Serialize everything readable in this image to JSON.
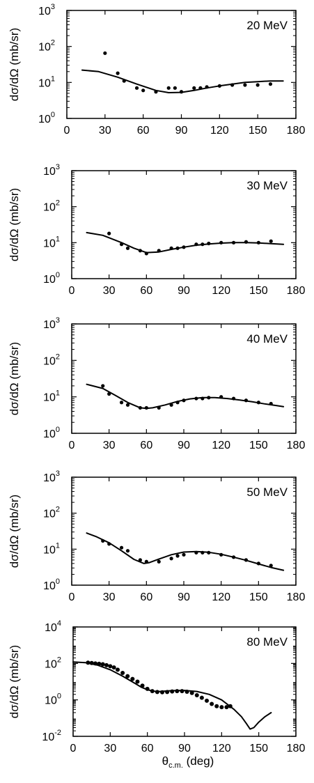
{
  "x_axis_label": "θc.m. (deg)",
  "x_axis_label_main": "θ",
  "x_axis_label_sub": "c.m.",
  "x_axis_label_unit": " (deg)",
  "chart_data": [
    {
      "type": "scatter",
      "energy_label": "20 MeV",
      "ylabel": "dσ/dΩ (mb/sr)",
      "xlim": [
        0,
        180
      ],
      "xticks": [
        0,
        30,
        60,
        90,
        120,
        150,
        180
      ],
      "yscale": "log",
      "ylim": [
        1,
        1000
      ],
      "ytick_exponents": [
        0,
        1,
        2,
        3
      ],
      "legend": "none",
      "grid": false,
      "series": [
        {
          "kind": "points",
          "x": [
            30,
            40,
            45,
            55,
            60,
            70,
            80,
            85,
            90,
            100,
            105,
            110,
            120,
            130,
            140,
            150,
            160
          ],
          "y": [
            65,
            18,
            11,
            7,
            6,
            5.5,
            7,
            7,
            5.5,
            7,
            7,
            7.5,
            8,
            8.5,
            8.5,
            8.5,
            9
          ]
        },
        {
          "kind": "curve",
          "x": [
            12,
            25,
            40,
            55,
            70,
            80,
            90,
            100,
            110,
            120,
            130,
            140,
            150,
            160,
            170
          ],
          "y": [
            22,
            20,
            14,
            9,
            6,
            5.2,
            5.3,
            6,
            7,
            8,
            9,
            10,
            10.5,
            11,
            11
          ]
        }
      ]
    },
    {
      "type": "scatter",
      "energy_label": "30 MeV",
      "ylabel": "dσ/dΩ (mb/sr)",
      "xlim": [
        0,
        180
      ],
      "xticks": [
        0,
        30,
        60,
        90,
        120,
        150,
        180
      ],
      "yscale": "log",
      "ylim": [
        1,
        1000
      ],
      "ytick_exponents": [
        0,
        1,
        2,
        3
      ],
      "legend": "none",
      "grid": false,
      "series": [
        {
          "kind": "points",
          "x": [
            30,
            40,
            45,
            55,
            60,
            70,
            80,
            85,
            90,
            100,
            105,
            110,
            120,
            130,
            140,
            150,
            160
          ],
          "y": [
            18,
            9,
            7,
            6,
            5,
            6,
            7,
            7,
            7.5,
            9,
            9,
            9.5,
            10,
            10,
            10.5,
            10,
            11
          ]
        },
        {
          "kind": "curve",
          "x": [
            12,
            25,
            40,
            50,
            60,
            70,
            80,
            90,
            100,
            110,
            120,
            130,
            140,
            150,
            160,
            170
          ],
          "y": [
            19,
            16,
            10,
            7,
            5.3,
            5.5,
            6.5,
            7.5,
            8.5,
            9.2,
            9.7,
            10,
            10,
            9.8,
            9.4,
            9
          ]
        }
      ]
    },
    {
      "type": "scatter",
      "energy_label": "40 MeV",
      "ylabel": "dσ/dΩ (mb/sr)",
      "xlim": [
        0,
        180
      ],
      "xticks": [
        0,
        30,
        60,
        90,
        120,
        150,
        180
      ],
      "yscale": "log",
      "ylim": [
        1,
        1000
      ],
      "ytick_exponents": [
        0,
        1,
        2,
        3
      ],
      "legend": "none",
      "grid": false,
      "series": [
        {
          "kind": "points",
          "x": [
            25,
            30,
            40,
            45,
            55,
            60,
            70,
            80,
            85,
            90,
            100,
            105,
            110,
            120,
            130,
            140,
            150,
            160
          ],
          "y": [
            20,
            12,
            7,
            6,
            5,
            5,
            5,
            6,
            7,
            8,
            9,
            9,
            9.5,
            10,
            9,
            8,
            7,
            6.5
          ]
        },
        {
          "kind": "curve",
          "x": [
            12,
            25,
            35,
            45,
            55,
            60,
            65,
            75,
            85,
            95,
            105,
            115,
            125,
            135,
            145,
            155,
            165,
            170
          ],
          "y": [
            22,
            17,
            11,
            7,
            5,
            4.8,
            5,
            6,
            7.5,
            8.8,
            9.5,
            9.5,
            9,
            8.2,
            7.3,
            6.4,
            5.7,
            5.4
          ]
        }
      ]
    },
    {
      "type": "scatter",
      "energy_label": "50 MeV",
      "ylabel": "dσ/dΩ (mb/sr)",
      "xlim": [
        0,
        180
      ],
      "xticks": [
        0,
        30,
        60,
        90,
        120,
        150,
        180
      ],
      "yscale": "log",
      "ylim": [
        1,
        1000
      ],
      "ytick_exponents": [
        0,
        1,
        2,
        3
      ],
      "legend": "none",
      "grid": false,
      "series": [
        {
          "kind": "points",
          "x": [
            25,
            30,
            40,
            45,
            55,
            60,
            70,
            80,
            85,
            90,
            100,
            105,
            110,
            120,
            130,
            140,
            150,
            160
          ],
          "y": [
            17,
            14,
            11,
            9,
            5,
            4.5,
            4.5,
            5.5,
            6.5,
            7,
            8,
            8,
            8,
            7,
            6,
            5,
            4,
            3.5
          ]
        },
        {
          "kind": "curve",
          "x": [
            12,
            20,
            30,
            40,
            50,
            58,
            62,
            70,
            80,
            90,
            100,
            110,
            120,
            130,
            140,
            150,
            160,
            170
          ],
          "y": [
            28,
            22,
            15,
            9,
            5.2,
            4,
            4.2,
            5.3,
            7,
            8.3,
            8.6,
            8.2,
            7.2,
            6,
            4.9,
            3.9,
            3.1,
            2.6
          ]
        }
      ]
    },
    {
      "type": "scatter",
      "energy_label": "80 MeV",
      "ylabel": "dσ/dΩ (mb/sr)",
      "xlim": [
        0,
        180
      ],
      "xticks": [
        0,
        30,
        60,
        90,
        120,
        150,
        180
      ],
      "yscale": "log",
      "ylim": [
        0.01,
        10000
      ],
      "ytick_exponents": [
        -2,
        0,
        2,
        4
      ],
      "legend": "none",
      "grid": false,
      "series": [
        {
          "kind": "points",
          "x": [
            12,
            15,
            18,
            21,
            24,
            27,
            30,
            33,
            36,
            40,
            44,
            48,
            52,
            56,
            60,
            64,
            68,
            72,
            76,
            80,
            84,
            88,
            92,
            96,
            100,
            104,
            108,
            112,
            116,
            120,
            124,
            127
          ],
          "y": [
            110,
            105,
            100,
            95,
            90,
            80,
            70,
            60,
            45,
            30,
            20,
            14,
            10,
            6,
            4,
            3,
            2.7,
            2.6,
            2.7,
            2.9,
            3,
            3,
            2.8,
            2.4,
            1.8,
            1.3,
            0.9,
            0.6,
            0.45,
            0.4,
            0.4,
            0.45
          ]
        },
        {
          "kind": "curve",
          "x": [
            0,
            10,
            20,
            30,
            40,
            50,
            55,
            60,
            65,
            70,
            80,
            90,
            100,
            110,
            120,
            130,
            136,
            140,
            143,
            146,
            150,
            155,
            160
          ],
          "y": [
            120,
            110,
            80,
            45,
            20,
            8,
            5,
            3.6,
            3,
            2.9,
            3.2,
            3.3,
            2.9,
            2,
            1,
            0.3,
            0.12,
            0.05,
            0.025,
            0.03,
            0.06,
            0.12,
            0.2
          ]
        }
      ]
    }
  ]
}
